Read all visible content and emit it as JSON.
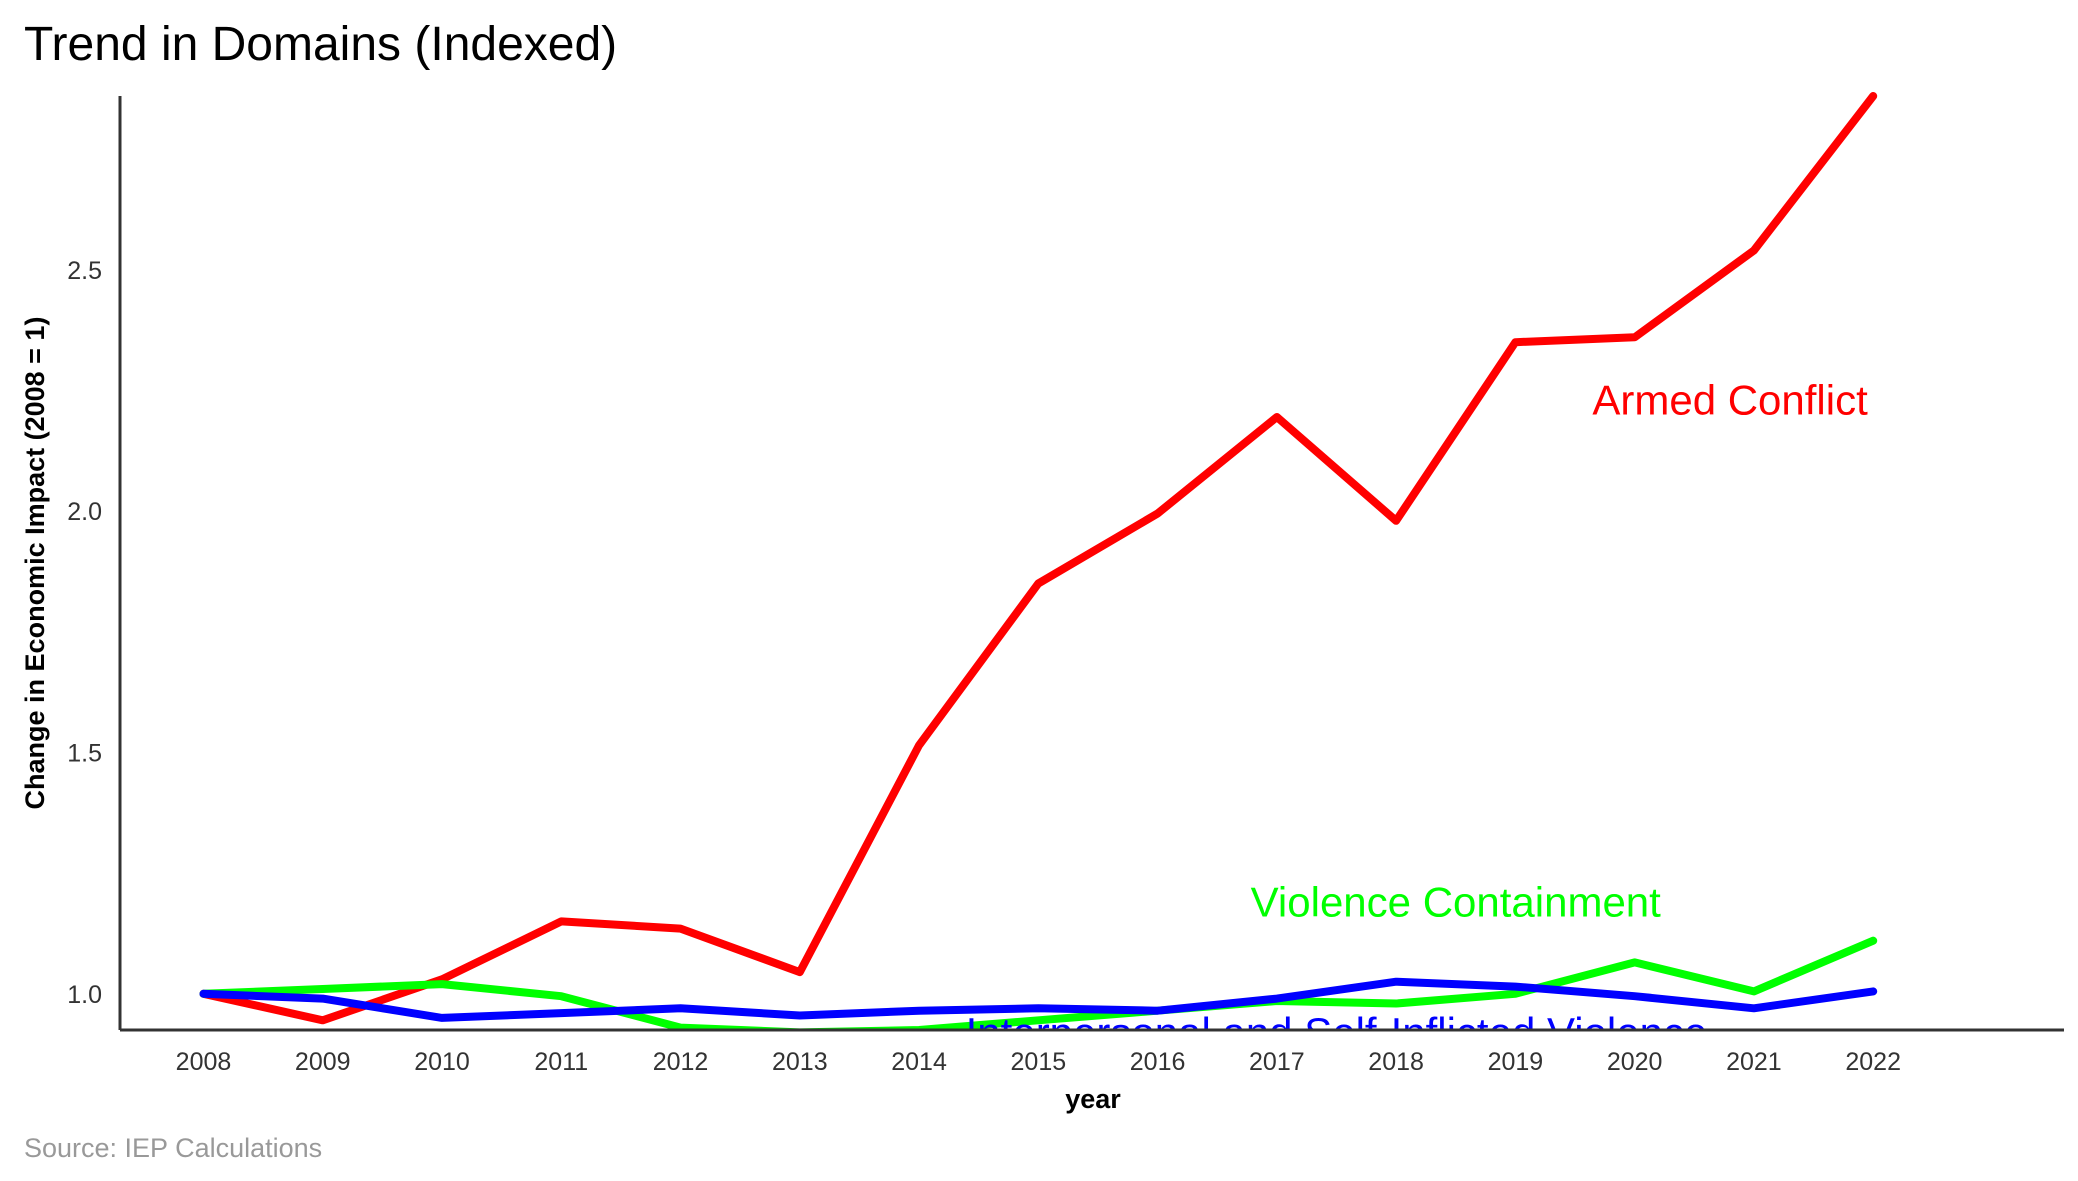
{
  "chart_data": {
    "type": "line",
    "title": "Trend in Domains (Indexed)",
    "xlabel": "year",
    "ylabel": "Change in Economic Impact (2008 = 1)",
    "caption": "Source: IEP Calculations",
    "x": [
      2008,
      2009,
      2010,
      2011,
      2012,
      2013,
      2014,
      2015,
      2016,
      2017,
      2018,
      2019,
      2020,
      2021,
      2022
    ],
    "x_ticks": [
      "2008",
      "2009",
      "2010",
      "2011",
      "2012",
      "2013",
      "2014",
      "2015",
      "2016",
      "2017",
      "2018",
      "2019",
      "2020",
      "2021",
      "2022"
    ],
    "y_ticks": [
      {
        "value": 1.0,
        "label": "1.0"
      },
      {
        "value": 1.5,
        "label": "1.5"
      },
      {
        "value": 2.0,
        "label": "2.0"
      },
      {
        "value": 2.5,
        "label": "2.5"
      }
    ],
    "xlim": [
      2007.3,
      2023.6
    ],
    "ylim": [
      0.925,
      2.86
    ],
    "grid": false,
    "legend": "direct labels",
    "series": [
      {
        "name": "Armed Conflict",
        "color": "#ff0000",
        "values": [
          1.0,
          0.945,
          1.03,
          1.15,
          1.135,
          1.045,
          1.515,
          1.85,
          1.995,
          2.195,
          1.98,
          2.35,
          2.36,
          2.54,
          2.86
        ],
        "label_x": 2020.8,
        "label_y": 2.2
      },
      {
        "name": "Violence Containment",
        "color": "#00ff00",
        "values": [
          1.0,
          1.01,
          1.02,
          0.995,
          0.93,
          0.92,
          0.925,
          0.945,
          0.965,
          0.985,
          0.98,
          1.0,
          1.065,
          1.005,
          1.11
        ],
        "label_x": 2018.5,
        "label_y": 1.16
      },
      {
        "name": "Interpersonal and Self-Inflicted Violence",
        "color": "#0000ff",
        "values": [
          1.0,
          0.99,
          0.95,
          0.96,
          0.97,
          0.955,
          0.965,
          0.97,
          0.965,
          0.99,
          1.025,
          1.015,
          0.995,
          0.97,
          1.005
        ],
        "label_x": 2017.5,
        "label_y": 0.89
      }
    ]
  }
}
